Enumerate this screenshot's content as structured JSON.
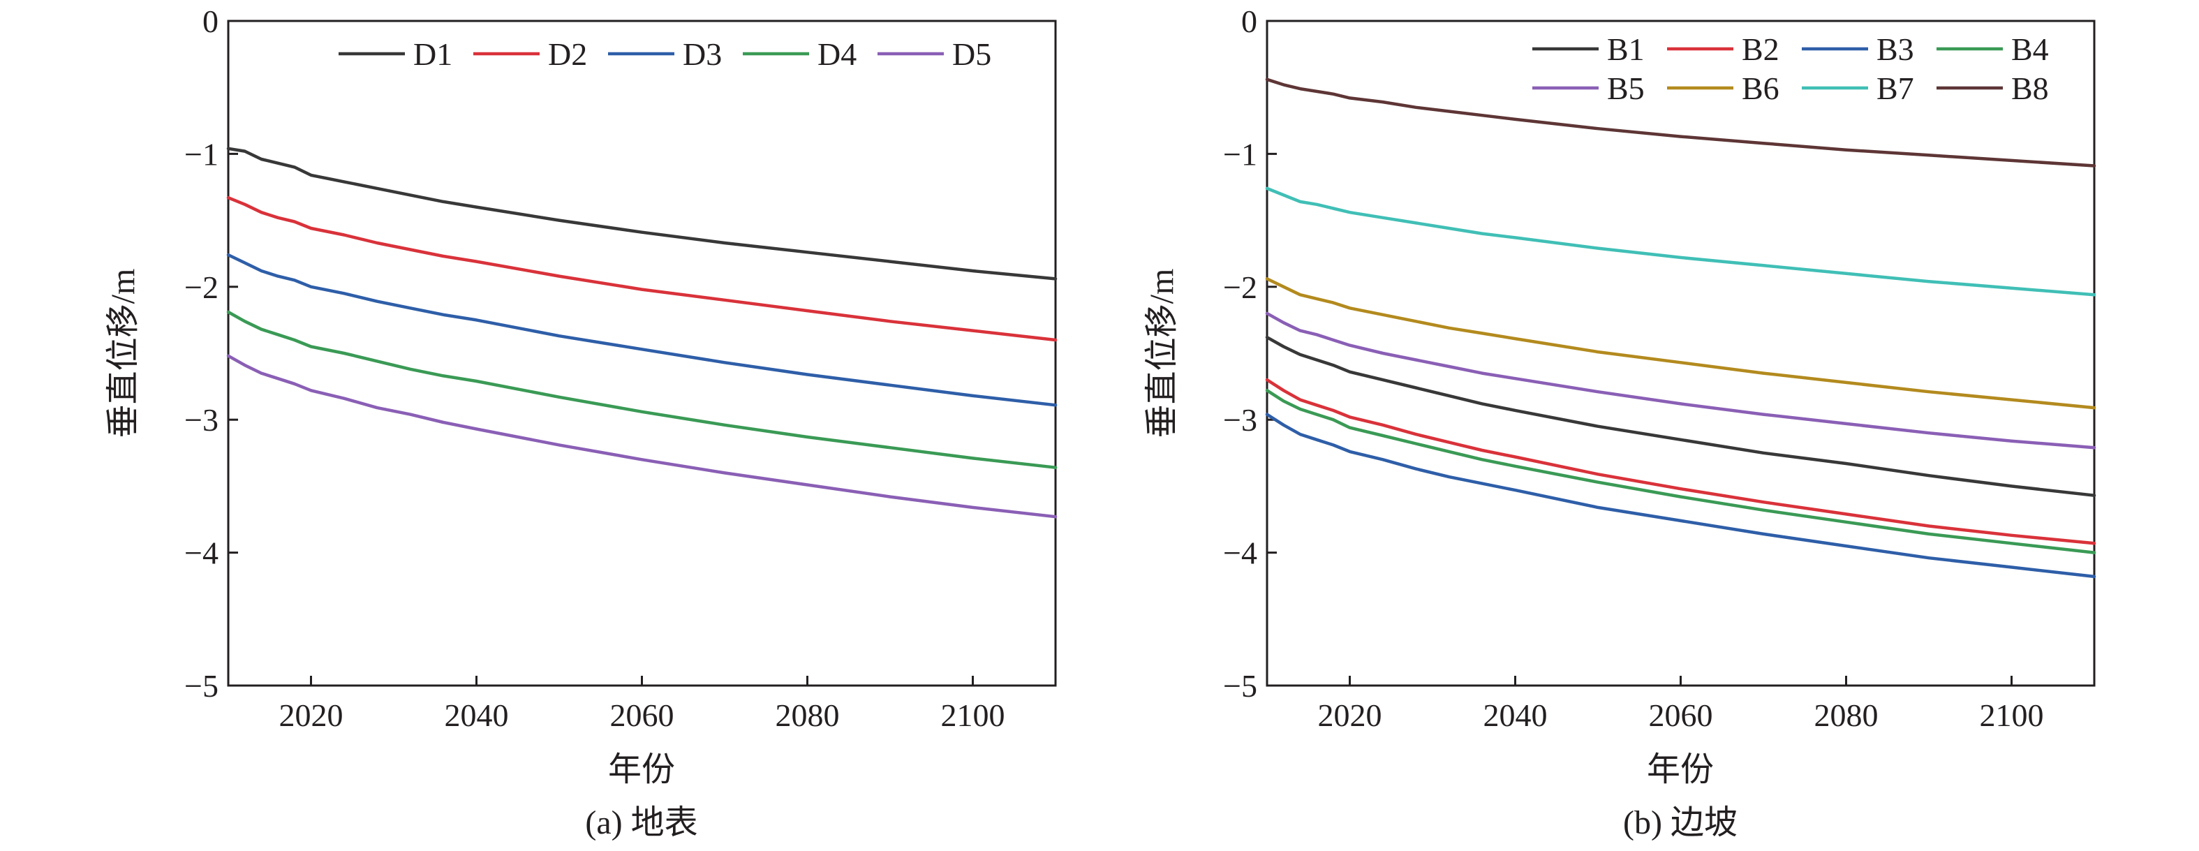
{
  "chart_data": [
    {
      "type": "line",
      "caption": "(a) 地表",
      "xlabel": "年份",
      "ylabel": "垂直位移/m",
      "xlim": [
        2010,
        2110
      ],
      "ylim": [
        -5,
        0
      ],
      "xticks": [
        2020,
        2040,
        2060,
        2080,
        2100
      ],
      "yticks": [
        0,
        -1,
        -2,
        -3,
        -4,
        -5
      ],
      "ytick_labels": [
        "0",
        "−1",
        "−2",
        "−3",
        "−4",
        "−5"
      ],
      "grid": false,
      "legend": {
        "position": "top",
        "columns": 5
      },
      "x": [
        2010,
        2012,
        2014,
        2016,
        2018,
        2020,
        2024,
        2028,
        2032,
        2036,
        2040,
        2050,
        2060,
        2070,
        2080,
        2090,
        2100,
        2110
      ],
      "series": [
        {
          "name": "D1",
          "color": "#383838",
          "values": [
            -0.96,
            -0.98,
            -1.04,
            -1.07,
            -1.1,
            -1.16,
            -1.21,
            -1.26,
            -1.31,
            -1.36,
            -1.4,
            -1.5,
            -1.59,
            -1.67,
            -1.74,
            -1.81,
            -1.88,
            -1.94
          ]
        },
        {
          "name": "D2",
          "color": "#d9323a",
          "values": [
            -1.33,
            -1.38,
            -1.44,
            -1.48,
            -1.51,
            -1.56,
            -1.61,
            -1.67,
            -1.72,
            -1.77,
            -1.81,
            -1.92,
            -2.02,
            -2.1,
            -2.18,
            -2.26,
            -2.33,
            -2.4
          ]
        },
        {
          "name": "D3",
          "color": "#2e5ea8",
          "values": [
            -1.76,
            -1.82,
            -1.88,
            -1.92,
            -1.95,
            -2.0,
            -2.05,
            -2.11,
            -2.16,
            -2.21,
            -2.25,
            -2.37,
            -2.47,
            -2.57,
            -2.66,
            -2.74,
            -2.82,
            -2.89
          ]
        },
        {
          "name": "D4",
          "color": "#3a9a55",
          "values": [
            -2.19,
            -2.26,
            -2.32,
            -2.36,
            -2.4,
            -2.45,
            -2.5,
            -2.56,
            -2.62,
            -2.67,
            -2.71,
            -2.83,
            -2.94,
            -3.04,
            -3.13,
            -3.21,
            -3.29,
            -3.36
          ]
        },
        {
          "name": "D5",
          "color": "#8a5fb5",
          "values": [
            -2.52,
            -2.59,
            -2.65,
            -2.69,
            -2.73,
            -2.78,
            -2.84,
            -2.91,
            -2.96,
            -3.02,
            -3.07,
            -3.19,
            -3.3,
            -3.4,
            -3.49,
            -3.58,
            -3.66,
            -3.73
          ]
        }
      ]
    },
    {
      "type": "line",
      "caption": "(b) 边坡",
      "xlabel": "年份",
      "ylabel": "垂直位移/m",
      "xlim": [
        2010,
        2110
      ],
      "ylim": [
        -5,
        0
      ],
      "xticks": [
        2020,
        2040,
        2060,
        2080,
        2100
      ],
      "yticks": [
        0,
        -1,
        -2,
        -3,
        -4,
        -5
      ],
      "ytick_labels": [
        "0",
        "−1",
        "−2",
        "−3",
        "−4",
        "−5"
      ],
      "grid": false,
      "legend": {
        "position": "top-right",
        "columns": 4
      },
      "x": [
        2010,
        2012,
        2014,
        2016,
        2018,
        2020,
        2024,
        2028,
        2032,
        2036,
        2040,
        2050,
        2060,
        2070,
        2080,
        2090,
        2100,
        2110
      ],
      "series": [
        {
          "name": "B1",
          "color": "#383838",
          "values": [
            -2.38,
            -2.45,
            -2.51,
            -2.55,
            -2.59,
            -2.64,
            -2.7,
            -2.76,
            -2.82,
            -2.88,
            -2.93,
            -3.05,
            -3.15,
            -3.25,
            -3.33,
            -3.42,
            -3.5,
            -3.57
          ]
        },
        {
          "name": "B2",
          "color": "#d9323a",
          "values": [
            -2.7,
            -2.78,
            -2.85,
            -2.89,
            -2.93,
            -2.98,
            -3.04,
            -3.11,
            -3.17,
            -3.23,
            -3.28,
            -3.41,
            -3.52,
            -3.62,
            -3.71,
            -3.8,
            -3.87,
            -3.93
          ]
        },
        {
          "name": "B3",
          "color": "#2e5ea8",
          "values": [
            -2.96,
            -3.04,
            -3.11,
            -3.15,
            -3.19,
            -3.24,
            -3.3,
            -3.37,
            -3.43,
            -3.48,
            -3.53,
            -3.66,
            -3.76,
            -3.86,
            -3.95,
            -4.04,
            -4.11,
            -4.18
          ]
        },
        {
          "name": "B4",
          "color": "#3a9a55",
          "values": [
            -2.78,
            -2.86,
            -2.92,
            -2.96,
            -3.0,
            -3.06,
            -3.12,
            -3.18,
            -3.24,
            -3.3,
            -3.35,
            -3.47,
            -3.58,
            -3.68,
            -3.77,
            -3.86,
            -3.93,
            -4.0
          ]
        },
        {
          "name": "B5",
          "color": "#8a5fb5",
          "values": [
            -2.2,
            -2.27,
            -2.33,
            -2.36,
            -2.4,
            -2.44,
            -2.5,
            -2.55,
            -2.6,
            -2.65,
            -2.69,
            -2.79,
            -2.88,
            -2.96,
            -3.03,
            -3.1,
            -3.16,
            -3.21
          ]
        },
        {
          "name": "B6",
          "color": "#b38a1e",
          "values": [
            -1.94,
            -2.0,
            -2.06,
            -2.09,
            -2.12,
            -2.16,
            -2.21,
            -2.26,
            -2.31,
            -2.35,
            -2.39,
            -2.49,
            -2.57,
            -2.65,
            -2.72,
            -2.79,
            -2.85,
            -2.91
          ]
        },
        {
          "name": "B7",
          "color": "#40bfb6",
          "values": [
            -1.26,
            -1.31,
            -1.36,
            -1.38,
            -1.41,
            -1.44,
            -1.48,
            -1.52,
            -1.56,
            -1.6,
            -1.63,
            -1.71,
            -1.78,
            -1.84,
            -1.9,
            -1.96,
            -2.01,
            -2.06
          ]
        },
        {
          "name": "B8",
          "color": "#5e3535",
          "values": [
            -0.44,
            -0.48,
            -0.51,
            -0.53,
            -0.55,
            -0.58,
            -0.61,
            -0.65,
            -0.68,
            -0.71,
            -0.74,
            -0.81,
            -0.87,
            -0.92,
            -0.97,
            -1.01,
            -1.05,
            -1.09
          ]
        }
      ]
    }
  ]
}
